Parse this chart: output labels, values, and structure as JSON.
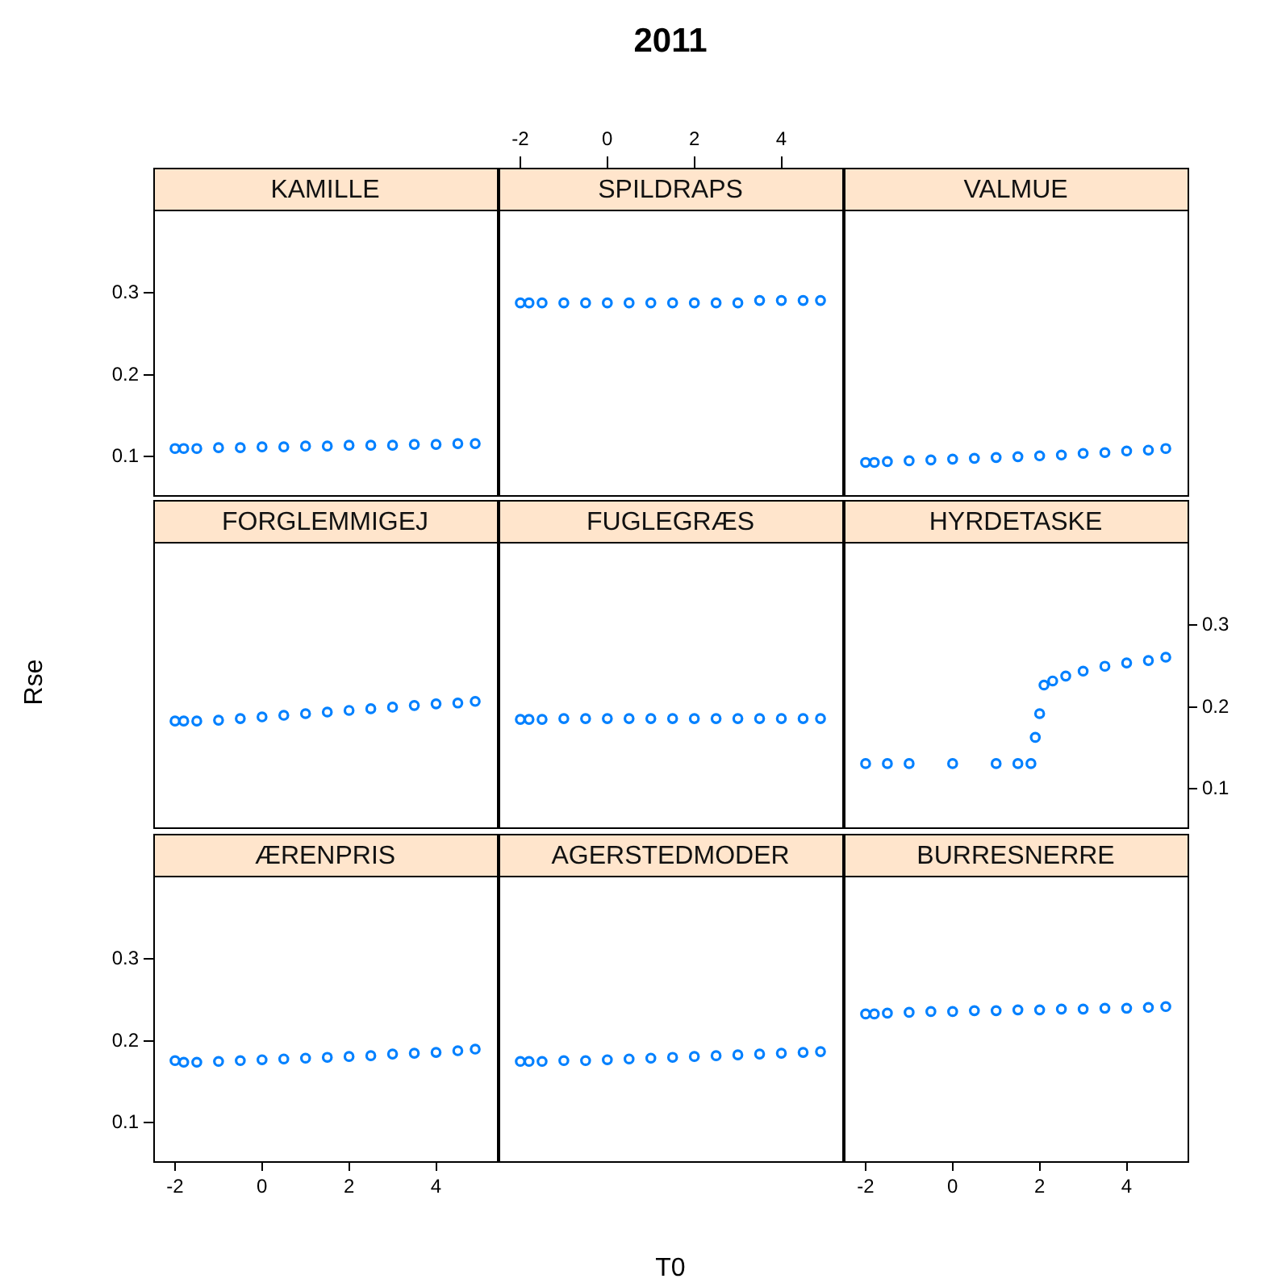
{
  "chart_data": [
    {
      "type": "scatter",
      "title": "KAMILLE",
      "marker": "circle",
      "xlim": [
        -2.5,
        5.4
      ],
      "ylim": [
        0.053,
        0.402
      ],
      "yticks": [
        0.1,
        0.2,
        0.3
      ],
      "tick_labels": "y",
      "x": [
        -2,
        -1.8,
        -1.5,
        -1,
        -0.5,
        0,
        0.5,
        1,
        1.5,
        2,
        2.5,
        3,
        3.5,
        4,
        4.5,
        4.9
      ],
      "series": [
        {
          "color": "#0080ff",
          "values": [
            0.11,
            0.11,
            0.11,
            0.111,
            0.111,
            0.112,
            0.112,
            0.113,
            0.113,
            0.114,
            0.114,
            0.114,
            0.115,
            0.115,
            0.116,
            0.116
          ]
        }
      ]
    },
    {
      "type": "scatter",
      "title": "SPILDRAPS",
      "marker": "circle",
      "annotations": [
        "2011"
      ],
      "xlim": [
        -2.5,
        5.4
      ],
      "x2lim": [
        -2.5,
        5.4
      ],
      "x2ticks": [
        -2,
        0,
        2,
        4
      ],
      "ylim": [
        0.053,
        0.402
      ],
      "tick_labels": false,
      "x": [
        -2,
        -1.8,
        -1.5,
        -1,
        -0.5,
        0,
        0.5,
        1,
        1.5,
        2,
        2.5,
        3,
        3.5,
        4,
        4.5,
        4.9
      ],
      "series": [
        {
          "color": "#0080ff",
          "values": [
            0.288,
            0.288,
            0.288,
            0.288,
            0.288,
            0.288,
            0.288,
            0.288,
            0.288,
            0.288,
            0.288,
            0.288,
            0.291,
            0.291,
            0.291,
            0.291
          ]
        }
      ]
    },
    {
      "type": "scatter",
      "title": "VALMUE",
      "marker": "circle",
      "xlim": [
        -2.5,
        5.4
      ],
      "ylim": [
        0.053,
        0.402
      ],
      "tick_labels": false,
      "x": [
        -2,
        -1.8,
        -1.5,
        -1,
        -0.5,
        0,
        0.5,
        1,
        1.5,
        2,
        2.5,
        3,
        3.5,
        4,
        4.5,
        4.9
      ],
      "series": [
        {
          "color": "#0080ff",
          "values": [
            0.093,
            0.093,
            0.094,
            0.095,
            0.096,
            0.097,
            0.098,
            0.099,
            0.1,
            0.101,
            0.102,
            0.104,
            0.105,
            0.107,
            0.108,
            0.11
          ]
        }
      ]
    },
    {
      "type": "scatter",
      "title": "FORGLEMMIGEJ",
      "marker": "circle",
      "ylabel": "Rse",
      "xlim": [
        -2.5,
        5.4
      ],
      "ylim": [
        0.053,
        0.402
      ],
      "tick_labels": false,
      "x": [
        -2,
        -1.8,
        -1.5,
        -1,
        -0.5,
        0,
        0.5,
        1,
        1.5,
        2,
        2.5,
        3,
        3.5,
        4,
        4.5,
        4.9
      ],
      "series": [
        {
          "color": "#0080ff",
          "values": [
            0.183,
            0.183,
            0.183,
            0.184,
            0.186,
            0.188,
            0.19,
            0.192,
            0.194,
            0.196,
            0.198,
            0.2,
            0.202,
            0.204,
            0.205,
            0.207
          ]
        }
      ]
    },
    {
      "type": "scatter",
      "title": "FUGLEGRÆS",
      "marker": "circle",
      "xlim": [
        -2.5,
        5.4
      ],
      "ylim": [
        0.053,
        0.402
      ],
      "tick_labels": false,
      "x": [
        -2,
        -1.8,
        -1.5,
        -1,
        -0.5,
        0,
        0.5,
        1,
        1.5,
        2,
        2.5,
        3,
        3.5,
        4,
        4.5,
        4.9
      ],
      "series": [
        {
          "color": "#0080ff",
          "values": [
            0.185,
            0.185,
            0.185,
            0.186,
            0.186,
            0.186,
            0.186,
            0.186,
            0.186,
            0.186,
            0.186,
            0.186,
            0.186,
            0.186,
            0.186,
            0.186
          ]
        }
      ]
    },
    {
      "type": "scatter",
      "title": "HYRDETASKE",
      "marker": "circle",
      "xlim": [
        -2.5,
        5.4
      ],
      "ylim": [
        0.053,
        0.402
      ],
      "yticks": [
        0.1,
        0.2,
        0.3
      ],
      "tick_labels": "y",
      "x": [
        -2,
        -1.5,
        -1,
        0,
        1,
        1.5,
        1.8,
        1.9,
        2.0,
        2.1,
        2.3,
        2.6,
        3,
        3.5,
        4,
        4.5,
        4.9
      ],
      "series": [
        {
          "color": "#0080ff",
          "values": [
            0.131,
            0.131,
            0.131,
            0.131,
            0.131,
            0.131,
            0.131,
            0.163,
            0.192,
            0.227,
            0.232,
            0.238,
            0.244,
            0.25,
            0.254,
            0.257,
            0.261
          ]
        }
      ]
    },
    {
      "type": "scatter",
      "title": "ÆRENPRIS",
      "marker": "circle",
      "xlim": [
        -2.5,
        5.4
      ],
      "xticks": [
        -2,
        0,
        2,
        4
      ],
      "ylim": [
        0.053,
        0.402
      ],
      "yticks": [
        0.1,
        0.2,
        0.3
      ],
      "x": [
        -2,
        -1.8,
        -1.5,
        -1,
        -0.5,
        0,
        0.5,
        1,
        1.5,
        2,
        2.5,
        3,
        3.5,
        4,
        4.5,
        4.9
      ],
      "series": [
        {
          "color": "#0080ff",
          "values": [
            0.176,
            0.174,
            0.174,
            0.175,
            0.176,
            0.177,
            0.178,
            0.179,
            0.18,
            0.181,
            0.182,
            0.184,
            0.185,
            0.186,
            0.188,
            0.19
          ]
        }
      ]
    },
    {
      "type": "scatter",
      "title": "AGERSTEDMODER",
      "marker": "circle",
      "xlabel": "T0",
      "xlim": [
        -2.5,
        5.4
      ],
      "ylim": [
        0.053,
        0.402
      ],
      "tick_labels": false,
      "x": [
        -2,
        -1.8,
        -1.5,
        -1,
        -0.5,
        0,
        0.5,
        1,
        1.5,
        2,
        2.5,
        3,
        3.5,
        4,
        4.5,
        4.9
      ],
      "series": [
        {
          "color": "#0080ff",
          "values": [
            0.175,
            0.175,
            0.175,
            0.176,
            0.176,
            0.177,
            0.178,
            0.179,
            0.18,
            0.181,
            0.182,
            0.183,
            0.184,
            0.185,
            0.186,
            0.187
          ]
        }
      ]
    },
    {
      "type": "scatter",
      "title": "BURRESNERRE",
      "marker": "circle",
      "xlim": [
        -2.5,
        5.4
      ],
      "xticks": [
        -2,
        0,
        2,
        4
      ],
      "ylim": [
        0.053,
        0.402
      ],
      "tick_labels": "x",
      "x": [
        -2,
        -1.8,
        -1.5,
        -1,
        -0.5,
        0,
        0.5,
        1,
        1.5,
        2,
        2.5,
        3,
        3.5,
        4,
        4.5,
        4.9
      ],
      "series": [
        {
          "color": "#0080ff",
          "values": [
            0.233,
            0.233,
            0.234,
            0.235,
            0.236,
            0.236,
            0.237,
            0.237,
            0.238,
            0.238,
            0.239,
            0.239,
            0.24,
            0.24,
            0.241,
            0.242
          ]
        }
      ]
    }
  ]
}
